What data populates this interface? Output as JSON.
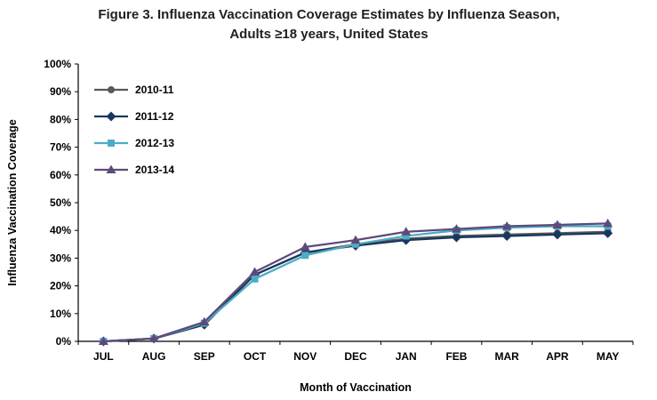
{
  "figure": {
    "title_line1": "Figure 3. Influenza Vaccination Coverage Estimates by Influenza Season,",
    "title_line2": "Adults ≥18 years, United States"
  },
  "chart_data": {
    "type": "line",
    "title": "Figure 3. Influenza Vaccination Coverage Estimates by Influenza Season, Adults ≥18 years, United States",
    "xlabel": "Month of Vaccination",
    "ylabel": "Influenza Vaccination Coverage",
    "ylim": [
      0,
      100
    ],
    "ytick_step": 10,
    "ytick_suffix": "%",
    "grid": false,
    "legend_position": "inside-top-left",
    "categories": [
      "JUL",
      "AUG",
      "SEP",
      "OCT",
      "NOV",
      "DEC",
      "JAN",
      "FEB",
      "MAR",
      "APR",
      "MAY"
    ],
    "series": [
      {
        "name": "2010-11",
        "marker": "circle",
        "color": "#595959",
        "values": [
          0,
          1,
          6,
          24,
          32,
          35,
          37,
          38,
          38.5,
          39,
          39.5
        ]
      },
      {
        "name": "2011-12",
        "marker": "diamond",
        "color": "#17375E",
        "values": [
          0,
          1,
          6,
          24,
          32,
          34.5,
          36.5,
          37.5,
          38,
          38.5,
          39
        ]
      },
      {
        "name": "2012-13",
        "marker": "square",
        "color": "#4BACC6",
        "values": [
          0,
          1,
          6.5,
          22.5,
          31,
          35,
          38,
          40,
          41,
          41.5,
          41.5
        ]
      },
      {
        "name": "2013-14",
        "marker": "triangle",
        "color": "#5F497A",
        "values": [
          0,
          1,
          7,
          25,
          34,
          36.5,
          39.5,
          40.5,
          41.5,
          42,
          42.5
        ]
      }
    ]
  }
}
